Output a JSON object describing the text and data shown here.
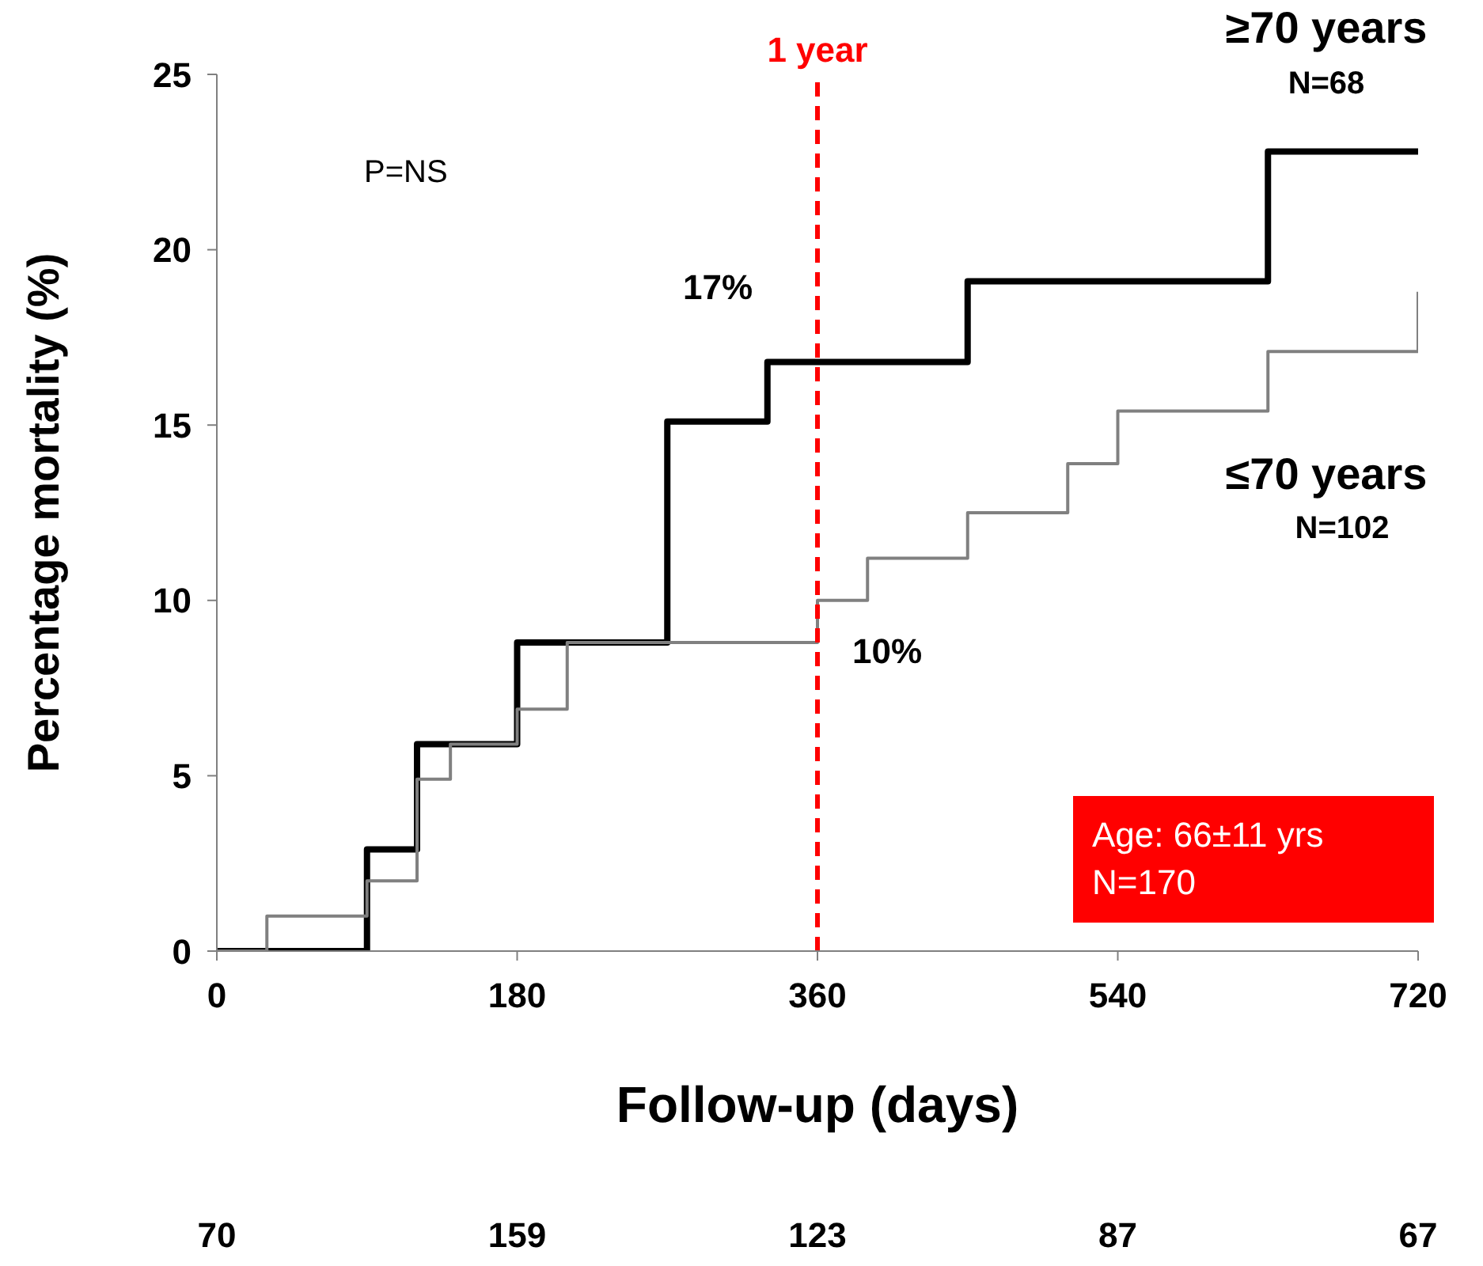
{
  "chart_data": {
    "type": "step",
    "xlabel": "Follow-up (days)",
    "ylabel": "Percentage mortality (%)",
    "xlim": [
      0,
      720
    ],
    "xticks": [
      0,
      180,
      360,
      540,
      720
    ],
    "ylim": [
      0,
      25
    ],
    "yticks": [
      0,
      5,
      10,
      15,
      20,
      25
    ],
    "series": [
      {
        "name": "≥70 years",
        "color": "#000000",
        "x": [
          0,
          90,
          120,
          180,
          270,
          330,
          450,
          630,
          720
        ],
        "values": [
          0,
          2.9,
          5.9,
          8.8,
          15.1,
          16.8,
          19.1,
          22.8,
          22.8
        ]
      },
      {
        "name": "≤70 years",
        "color": "#808080",
        "x": [
          0,
          30,
          90,
          120,
          140,
          180,
          210,
          360,
          390,
          450,
          510,
          540,
          630,
          720
        ],
        "values": [
          0,
          1,
          2,
          4.9,
          5.9,
          6.9,
          8.8,
          10,
          11.2,
          12.5,
          13.9,
          15.4,
          17.1,
          18.8
        ]
      }
    ],
    "ref_lines": [
      {
        "axis": "x",
        "value": 360,
        "label": "1 year",
        "color": "#ff0000",
        "line_style": "dashed"
      }
    ],
    "annotations": [
      {
        "text": "17%",
        "x": 360,
        "y": 16.8
      },
      {
        "text": "10%",
        "x": 360,
        "y": 10
      },
      "P=NS",
      "Age: 66±11 yrs\nN=170",
      "N=68",
      "N=102",
      "70",
      "159",
      "123",
      "87",
      "67"
    ],
    "grid": false,
    "legend": false,
    "marker": "none",
    "line_style": "solid"
  }
}
